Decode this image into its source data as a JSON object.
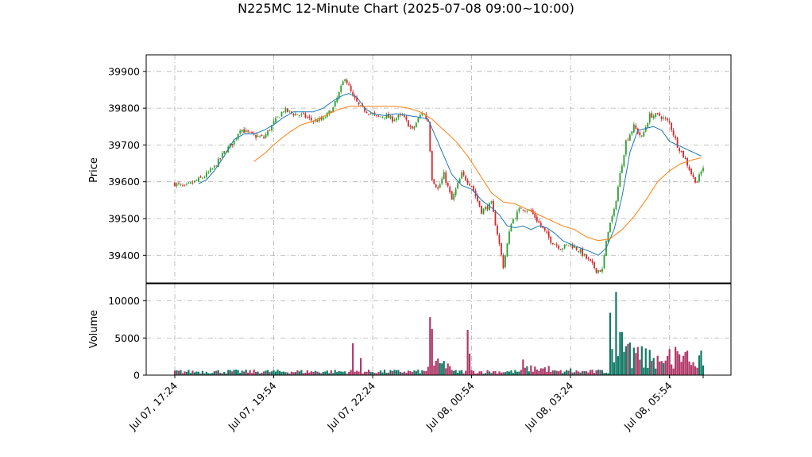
{
  "chart_data": {
    "type": "candlestick",
    "title": "N225MC 12-Minute Chart (2025-07-08 09:00~10:00)",
    "price_panel": {
      "ylabel": "Price",
      "ylim": [
        39325,
        39945
      ],
      "yticks": [
        39400,
        39500,
        39600,
        39700,
        39800,
        39900
      ],
      "grid": true,
      "series": [
        {
          "kind": "ohlc",
          "up_color": "#2ca02c",
          "down_color": "#d62728"
        },
        {
          "kind": "moving-average",
          "color": "#1f77b4"
        },
        {
          "kind": "moving-average",
          "color": "#ff7f0e"
        }
      ]
    },
    "volume_panel": {
      "ylabel": "Volume",
      "ylim": [
        0,
        12300
      ],
      "yticks": [
        0,
        5000,
        10000
      ],
      "up_color": "#117a65",
      "down_color": "#b03a6a",
      "grid": true
    },
    "x_tick_labels": [
      "Jul 07, 17:24",
      "Jul 07, 19:54",
      "Jul 07, 22:24",
      "Jul 08, 00:54",
      "Jul 08, 03:24",
      "Jul 08, 05:54"
    ],
    "close_keypoints": [
      [
        0,
        39595
      ],
      [
        5,
        39585
      ],
      [
        10,
        39600
      ],
      [
        15,
        39615
      ],
      [
        20,
        39640
      ],
      [
        25,
        39680
      ],
      [
        30,
        39710
      ],
      [
        33,
        39745
      ],
      [
        36,
        39735
      ],
      [
        40,
        39725
      ],
      [
        45,
        39720
      ],
      [
        50,
        39760
      ],
      [
        55,
        39795
      ],
      [
        60,
        39785
      ],
      [
        65,
        39780
      ],
      [
        70,
        39765
      ],
      [
        75,
        39770
      ],
      [
        80,
        39800
      ],
      [
        83,
        39840
      ],
      [
        86,
        39885
      ],
      [
        90,
        39830
      ],
      [
        94,
        39800
      ],
      [
        98,
        39790
      ],
      [
        102,
        39775
      ],
      [
        106,
        39780
      ],
      [
        110,
        39770
      ],
      [
        115,
        39780
      ],
      [
        120,
        39740
      ],
      [
        125,
        39790
      ],
      [
        128,
        39765
      ],
      [
        130,
        39610
      ],
      [
        133,
        39580
      ],
      [
        136,
        39620
      ],
      [
        140,
        39550
      ],
      [
        145,
        39620
      ],
      [
        150,
        39590
      ],
      [
        155,
        39520
      ],
      [
        160,
        39540
      ],
      [
        163,
        39460
      ],
      [
        166,
        39370
      ],
      [
        170,
        39490
      ],
      [
        175,
        39530
      ],
      [
        180,
        39520
      ],
      [
        185,
        39480
      ],
      [
        190,
        39440
      ],
      [
        195,
        39420
      ],
      [
        200,
        39430
      ],
      [
        205,
        39410
      ],
      [
        210,
        39380
      ],
      [
        213,
        39360
      ],
      [
        216,
        39360
      ],
      [
        219,
        39470
      ],
      [
        222,
        39520
      ],
      [
        225,
        39620
      ],
      [
        228,
        39710
      ],
      [
        232,
        39750
      ],
      [
        236,
        39720
      ],
      [
        240,
        39780
      ],
      [
        245,
        39780
      ],
      [
        250,
        39760
      ],
      [
        254,
        39700
      ],
      [
        258,
        39660
      ],
      [
        262,
        39610
      ],
      [
        264,
        39600
      ],
      [
        267,
        39640
      ]
    ],
    "ma_blue": [
      [
        12,
        39595
      ],
      [
        16,
        39605
      ],
      [
        20,
        39630
      ],
      [
        25,
        39670
      ],
      [
        30,
        39715
      ],
      [
        35,
        39730
      ],
      [
        40,
        39730
      ],
      [
        45,
        39740
      ],
      [
        50,
        39755
      ],
      [
        55,
        39775
      ],
      [
        60,
        39790
      ],
      [
        65,
        39790
      ],
      [
        70,
        39790
      ],
      [
        75,
        39800
      ],
      [
        80,
        39820
      ],
      [
        85,
        39835
      ],
      [
        88,
        39840
      ],
      [
        92,
        39830
      ],
      [
        96,
        39800
      ],
      [
        100,
        39785
      ],
      [
        106,
        39780
      ],
      [
        112,
        39785
      ],
      [
        118,
        39780
      ],
      [
        124,
        39775
      ],
      [
        128,
        39770
      ],
      [
        132,
        39720
      ],
      [
        136,
        39670
      ],
      [
        140,
        39620
      ],
      [
        145,
        39590
      ],
      [
        150,
        39580
      ],
      [
        155,
        39550
      ],
      [
        160,
        39530
      ],
      [
        164,
        39510
      ],
      [
        168,
        39480
      ],
      [
        172,
        39475
      ],
      [
        176,
        39480
      ],
      [
        180,
        39470
      ],
      [
        184,
        39480
      ],
      [
        188,
        39475
      ],
      [
        192,
        39460
      ],
      [
        196,
        39440
      ],
      [
        200,
        39430
      ],
      [
        205,
        39420
      ],
      [
        210,
        39410
      ],
      [
        214,
        39400
      ],
      [
        218,
        39420
      ],
      [
        222,
        39470
      ],
      [
        226,
        39560
      ],
      [
        230,
        39680
      ],
      [
        234,
        39740
      ],
      [
        238,
        39745
      ],
      [
        242,
        39750
      ],
      [
        246,
        39740
      ],
      [
        250,
        39710
      ],
      [
        254,
        39700
      ],
      [
        258,
        39690
      ],
      [
        262,
        39680
      ],
      [
        266,
        39670
      ]
    ],
    "ma_orange": [
      [
        40,
        39655
      ],
      [
        46,
        39680
      ],
      [
        52,
        39710
      ],
      [
        58,
        39735
      ],
      [
        64,
        39755
      ],
      [
        70,
        39765
      ],
      [
        76,
        39780
      ],
      [
        82,
        39795
      ],
      [
        88,
        39805
      ],
      [
        94,
        39805
      ],
      [
        100,
        39805
      ],
      [
        106,
        39805
      ],
      [
        112,
        39805
      ],
      [
        118,
        39800
      ],
      [
        124,
        39790
      ],
      [
        130,
        39770
      ],
      [
        136,
        39740
      ],
      [
        142,
        39710
      ],
      [
        148,
        39670
      ],
      [
        154,
        39620
      ],
      [
        160,
        39570
      ],
      [
        166,
        39545
      ],
      [
        172,
        39540
      ],
      [
        178,
        39525
      ],
      [
        184,
        39510
      ],
      [
        190,
        39495
      ],
      [
        196,
        39480
      ],
      [
        202,
        39470
      ],
      [
        208,
        39450
      ],
      [
        214,
        39440
      ],
      [
        220,
        39445
      ],
      [
        226,
        39470
      ],
      [
        232,
        39505
      ],
      [
        238,
        39550
      ],
      [
        244,
        39600
      ],
      [
        250,
        39630
      ],
      [
        256,
        39650
      ],
      [
        262,
        39660
      ],
      [
        266,
        39665
      ]
    ],
    "volume_spikes": [
      [
        90,
        4300
      ],
      [
        94,
        2300
      ],
      [
        129,
        7800
      ],
      [
        130,
        6200
      ],
      [
        148,
        6100
      ],
      [
        149,
        2900
      ],
      [
        176,
        2100
      ],
      [
        200,
        900
      ],
      [
        215,
        700
      ],
      [
        220,
        8400
      ],
      [
        221,
        3500
      ],
      [
        223,
        11200
      ],
      [
        225,
        5800
      ],
      [
        226,
        5800
      ],
      [
        228,
        3900
      ],
      [
        229,
        4200
      ],
      [
        230,
        4400
      ],
      [
        232,
        3700
      ],
      [
        234,
        3800
      ],
      [
        236,
        3900
      ],
      [
        238,
        3600
      ],
      [
        240,
        3400
      ],
      [
        244,
        2600
      ],
      [
        250,
        3500
      ],
      [
        253,
        3800
      ],
      [
        256,
        1800
      ],
      [
        259,
        3300
      ],
      [
        263,
        1200
      ],
      [
        267,
        1300
      ]
    ]
  }
}
